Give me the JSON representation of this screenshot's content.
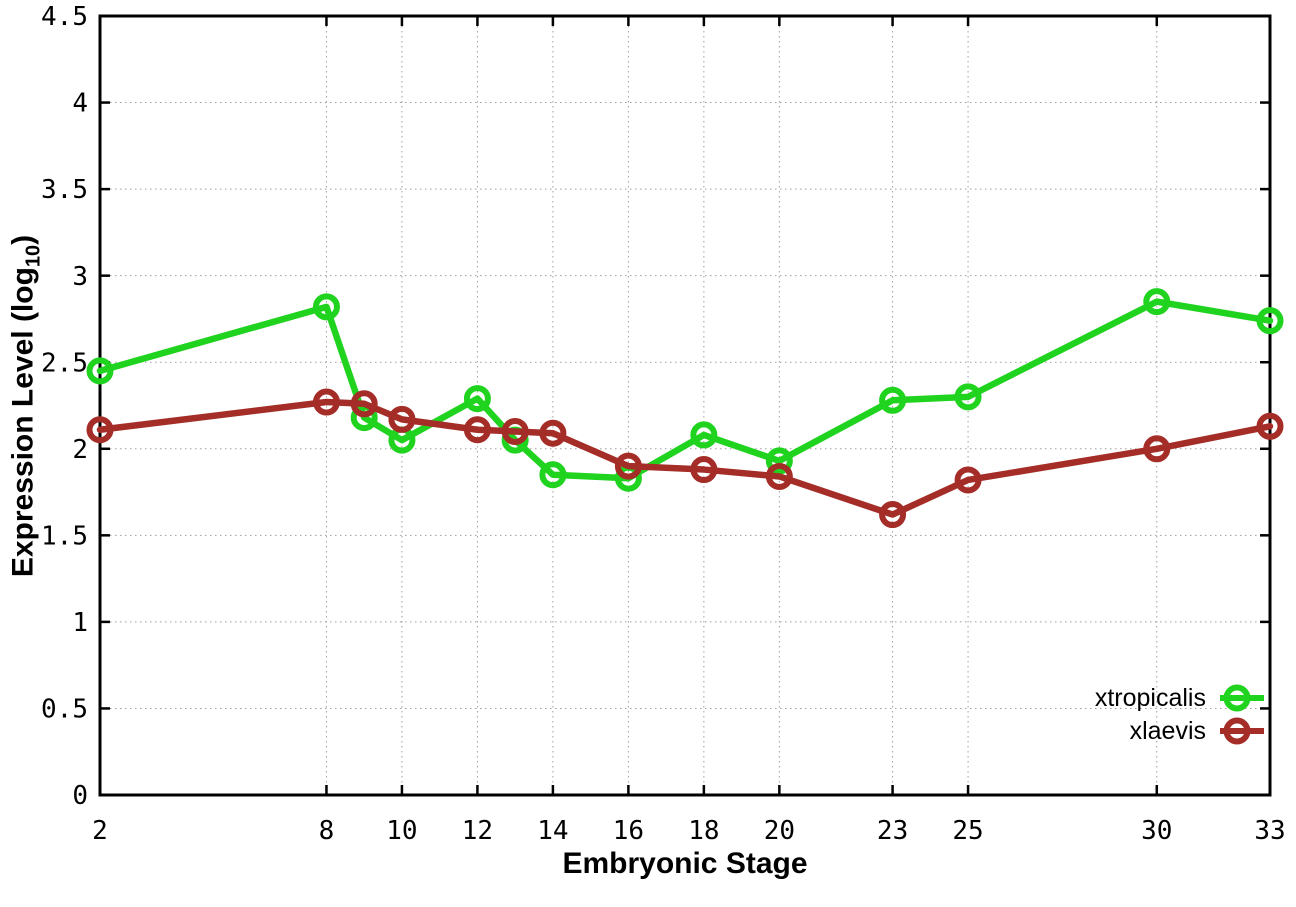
{
  "figure": {
    "x_title": "Embryonic Stage",
    "y_title_prefix": "Expression Level (log",
    "y_title_sub": "10",
    "y_title_suffix": ")",
    "background_color": "#ffffff",
    "grid_color": "#9f9f9f",
    "border_color": "#000000"
  },
  "chart_data": {
    "type": "line",
    "title": "",
    "xlabel": "Embryonic Stage",
    "ylabel": "Expression Level (log10)",
    "xlim": [
      2,
      33
    ],
    "ylim": [
      0,
      4.5
    ],
    "grid": true,
    "legend_position": "bottom-right inside",
    "marker": "open-circle",
    "x": [
      2,
      8,
      9,
      10,
      12,
      13,
      14,
      16,
      18,
      20,
      23,
      25,
      30,
      33
    ],
    "x_tick_labels": [
      "2",
      "8",
      "10",
      "12",
      "14",
      "16",
      "18",
      "20",
      "23",
      "25",
      "30",
      "33"
    ],
    "y_tick_labels": [
      "0",
      "0.5",
      "1",
      "1.5",
      "2",
      "2.5",
      "3",
      "3.5",
      "4",
      "4.5"
    ],
    "series": [
      {
        "name": "xtropicalis",
        "color": "#1fd31f",
        "values": [
          2.45,
          2.82,
          2.18,
          2.05,
          2.29,
          2.05,
          1.85,
          1.83,
          2.08,
          1.93,
          2.28,
          2.3,
          2.85,
          2.74
        ]
      },
      {
        "name": "xlaevis",
        "color": "#a52d28",
        "values": [
          2.11,
          2.27,
          2.26,
          2.17,
          2.11,
          2.1,
          2.09,
          1.9,
          1.88,
          1.84,
          1.62,
          1.82,
          2.0,
          2.13
        ]
      }
    ]
  }
}
